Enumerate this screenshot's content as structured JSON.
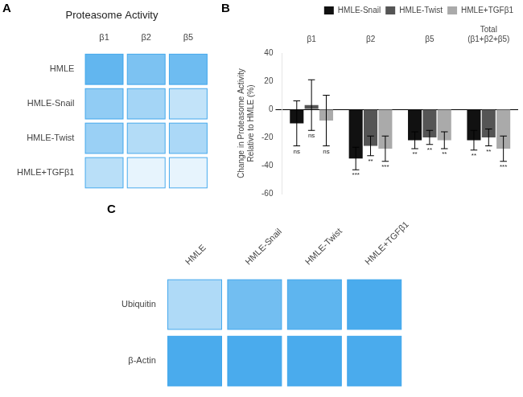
{
  "chart_data": [
    {
      "type": "heatmap",
      "title": "Proteasome Activity",
      "panel_label": "A",
      "categories": [
        "β1",
        "β2",
        "β5"
      ],
      "series": [
        {
          "name": "HMLE",
          "values": [
            0.78,
            0.65,
            0.72
          ]
        },
        {
          "name": "HMLE-Snail",
          "values": [
            0.55,
            0.45,
            0.3
          ]
        },
        {
          "name": "HMLE-Twist",
          "values": [
            0.5,
            0.38,
            0.42
          ]
        },
        {
          "name": "HMLE+TGFβ1",
          "values": [
            0.35,
            0.12,
            0.12
          ]
        }
      ]
    },
    {
      "type": "bar",
      "panel_label": "B",
      "categories": [
        "β1",
        "β2",
        "β5",
        "Total\n(β1+β2+β5)"
      ],
      "series": [
        {
          "name": "HMLE-Snail",
          "color": "#111111",
          "values": [
            -10,
            -35,
            -22,
            -22
          ],
          "errors": [
            16,
            8,
            6,
            7
          ],
          "annotations": [
            "ns",
            "***",
            "**",
            "**"
          ]
        },
        {
          "name": "HMLE-Twist",
          "color": "#555555",
          "values": [
            3,
            -26,
            -20,
            -20
          ],
          "errors": [
            18,
            7,
            5,
            6
          ],
          "annotations": [
            "ns",
            "**",
            "**",
            "**"
          ]
        },
        {
          "name": "HMLE+TGFβ1",
          "color": "#aaaaaa",
          "values": [
            -8,
            -28,
            -22,
            -28
          ],
          "errors": [
            18,
            9,
            6,
            9
          ],
          "annotations": [
            "ns",
            "***",
            "**",
            "***"
          ]
        }
      ],
      "ylabel": "Change in Proteasome Activity\nRelative to HMLE (%)",
      "ylim": [
        -60,
        40
      ],
      "yticks": [
        40,
        20,
        0,
        -20,
        -40,
        -60
      ],
      "legend": "upper right",
      "grid": false
    },
    {
      "type": "heatmap",
      "panel_label": "C",
      "categories": [
        "HMLE",
        "HMLE-Snail",
        "HMLE-Twist",
        "HMLE+TGFβ1"
      ],
      "series": [
        {
          "name": "Ubiquitin",
          "values": [
            0.4,
            0.7,
            0.8,
            0.9
          ]
        },
        {
          "name": "β-Actin",
          "values": [
            0.9,
            0.9,
            0.9,
            0.9
          ]
        }
      ]
    }
  ]
}
